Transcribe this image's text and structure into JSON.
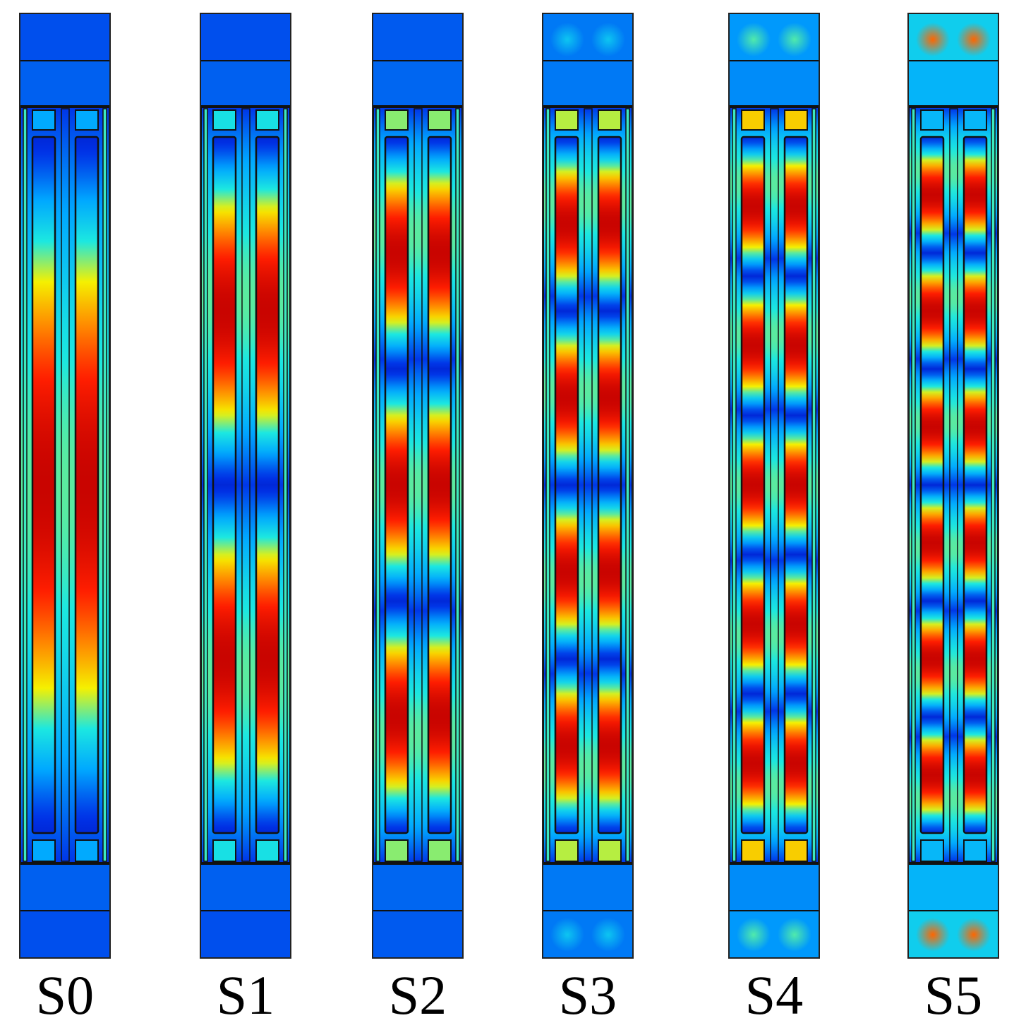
{
  "colormap": {
    "stops": [
      "#00008f",
      "#0030e6",
      "#00a8ff",
      "#1ce8e0",
      "#f5f000",
      "#ff8a00",
      "#ff1e00",
      "#c00000"
    ],
    "background": "#0b2fd4"
  },
  "modes": [
    {
      "label": "S0",
      "antinodes": 1,
      "antinode_intensity": 1.0,
      "top_glow": 0.0,
      "pad_glow": 0.15
    },
    {
      "label": "S1",
      "antinodes": 2,
      "antinode_intensity": 1.0,
      "top_glow": 0.0,
      "pad_glow": 0.35
    },
    {
      "label": "S2",
      "antinodes": 3,
      "antinode_intensity": 1.0,
      "top_glow": 0.05,
      "pad_glow": 0.5
    },
    {
      "label": "S3",
      "antinodes": 4,
      "antinode_intensity": 1.0,
      "top_glow": 0.2,
      "pad_glow": 0.55
    },
    {
      "label": "S4",
      "antinodes": 5,
      "antinode_intensity": 1.0,
      "top_glow": 0.35,
      "pad_glow": 0.7
    },
    {
      "label": "S5",
      "antinodes": 6,
      "antinode_intensity": 1.0,
      "top_glow": 0.75,
      "pad_glow": 0.2
    }
  ]
}
